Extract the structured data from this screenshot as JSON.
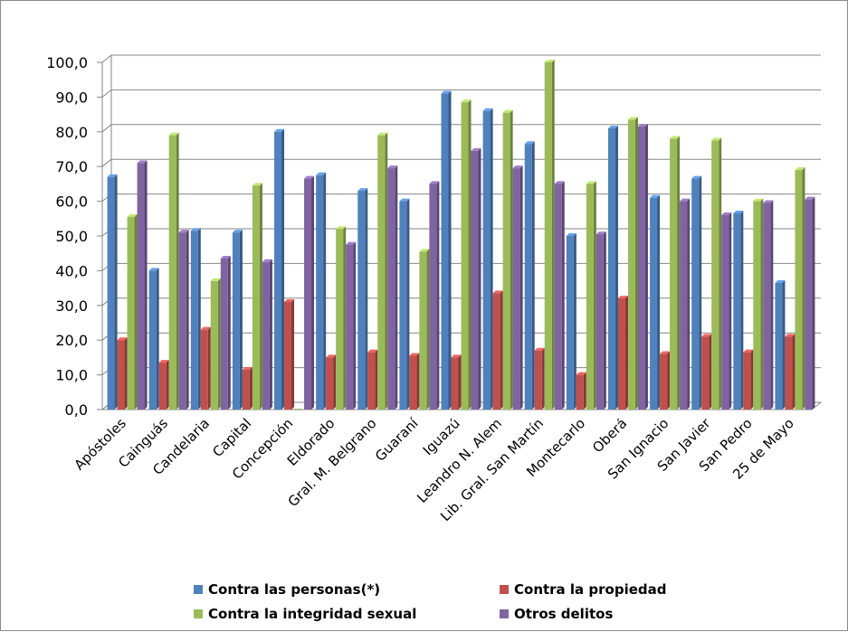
{
  "chart_data": {
    "type": "bar",
    "title": "",
    "xlabel": "",
    "ylabel": "",
    "ylim": [
      0,
      100
    ],
    "y_ticks": [
      "0,0",
      "10,0",
      "20,0",
      "30,0",
      "40,0",
      "50,0",
      "60,0",
      "70,0",
      "80,0",
      "90,0",
      "100,0"
    ],
    "grid": true,
    "legend_position": "bottom",
    "categories": [
      "Apóstoles",
      "Cainguás",
      "Candelaria",
      "Capital",
      "Concepción",
      "Eldorado",
      "Gral. M. Belgrano",
      "Guaraní",
      "Iguazú",
      "Leandro N. Alem",
      "Lib. Gral. San Martín",
      "Montecarlo",
      "Oberá",
      "San Ignacio",
      "San Javier",
      "San Pedro",
      "25 de Mayo"
    ],
    "series": [
      {
        "name": "Contra las personas(*)",
        "color": "#4f81bd",
        "values": [
          67,
          40,
          51.5,
          51,
          80,
          67.5,
          63,
          60,
          91,
          86,
          76.5,
          50,
          81,
          61,
          66.5,
          56.5,
          36.5
        ]
      },
      {
        "name": "Contra la propiedad",
        "color": "#c0504d",
        "values": [
          20,
          13.5,
          23,
          11.5,
          31,
          15,
          16.5,
          15.5,
          15,
          33.5,
          17,
          10,
          32,
          16,
          21,
          16.5,
          21
        ]
      },
      {
        "name": "Contra la integridad sexual",
        "color": "#9bbb59",
        "values": [
          55.5,
          79,
          37,
          64.5,
          0,
          52,
          79,
          45.5,
          88.5,
          85.5,
          100,
          65,
          83.5,
          78,
          77.5,
          60,
          69
        ]
      },
      {
        "name": "Otros delitos",
        "color": "#8064a2",
        "values": [
          71,
          51,
          43.5,
          42.5,
          66.5,
          47.5,
          69.5,
          65,
          74.5,
          69.5,
          65,
          50.5,
          81.5,
          60,
          56,
          59.5,
          60.5
        ]
      }
    ]
  }
}
